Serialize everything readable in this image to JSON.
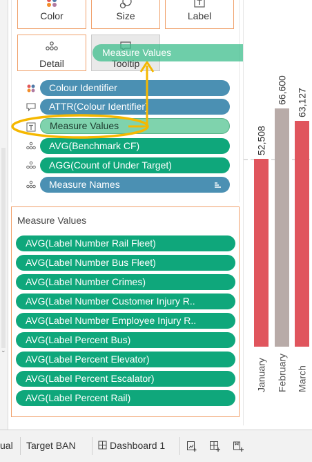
{
  "marks_card": {
    "buttons": [
      {
        "id": "color",
        "label": "Color",
        "icon": "color-dots-icon"
      },
      {
        "id": "size",
        "label": "Size",
        "icon": "size-icon"
      },
      {
        "id": "label",
        "label": "Label",
        "icon": "text-t-icon"
      },
      {
        "id": "detail",
        "label": "Detail",
        "icon": "detail-dots-icon"
      },
      {
        "id": "tooltip",
        "label": "Tooltip",
        "icon": "tooltip-icon"
      }
    ],
    "pills": [
      {
        "label": "Colour Identifier",
        "color": "blue",
        "icon": "color-dots-icon"
      },
      {
        "label": "ATTR(Colour Identifier)",
        "color": "blue",
        "icon": "tooltip-icon"
      },
      {
        "label": "Measure Values",
        "color": "light-green",
        "icon": "text-t-icon"
      },
      {
        "label": "AVG(Benchmark CF)",
        "color": "green",
        "icon": "detail-dots-icon"
      },
      {
        "label": "AGG(Count of Under Target)",
        "color": "green",
        "icon": "detail-dots-icon"
      },
      {
        "label": "Measure Names",
        "color": "blue",
        "icon": "detail-dots-icon"
      }
    ]
  },
  "drag_ghost": {
    "label": "Measure Values"
  },
  "measure_values_shelf": {
    "title": "Measure Values",
    "items": [
      "AVG(Label Number Rail Fleet)",
      "AVG(Label Number Bus Fleet)",
      "AVG(Label Number Crimes)",
      "AVG(Label Number Customer Injury R..",
      "AVG(Label Number Employee Injury R..",
      "AVG(Label Percent Bus)",
      "AVG(Label Percent Elevator)",
      "AVG(Label Percent Escalator)",
      "AVG(Label Percent Rail)"
    ]
  },
  "chart_data": {
    "type": "bar",
    "categories": [
      "January",
      "February",
      "March"
    ],
    "values": [
      52508,
      66600,
      63127
    ],
    "data_labels": [
      "52,508",
      "66,600",
      "63,127"
    ],
    "colors": [
      "#e0555d",
      "#b8aba8",
      "#e0555d"
    ],
    "reference_line": true
  },
  "tabs": {
    "items": [
      "ual",
      "Target BAN",
      "Dashboard 1"
    ],
    "action_icons": [
      "new-worksheet-icon",
      "new-dashboard-icon",
      "new-story-icon"
    ]
  },
  "colors": {
    "pill_blue": "#4b90b3",
    "pill_green": "#0fa77b",
    "highlight_yellow": "#f5b800",
    "drop_border": "#f0a06a"
  }
}
